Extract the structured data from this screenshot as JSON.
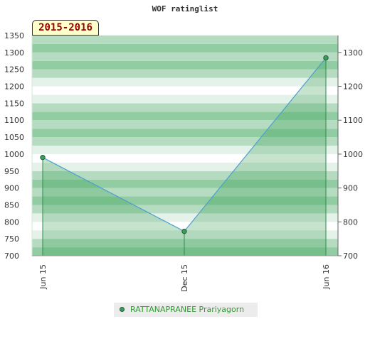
{
  "title": "WOF ratinglist",
  "season": "2015-2016",
  "legend": {
    "label": "RATTANAPRANEE Prariyagorn"
  },
  "colors": {
    "stripe_light": "#e5f2e9",
    "stripe_mid": "#b5dcc1",
    "stripe_dark": "#92cca3",
    "area_fill": "#2e9a4a",
    "line": "#4c9fd0",
    "marker": "#3a9e5e",
    "drop_line": "#2f8a4b",
    "legend_text": "#339933"
  },
  "chart_data": {
    "type": "area",
    "title": "WOF ratinglist",
    "x": [
      "Jun 15",
      "Dec 15",
      "Jun 16"
    ],
    "series": [
      {
        "name": "RATTANAPRANEE Prariyagorn",
        "values": [
          990,
          772,
          1284
        ]
      }
    ],
    "ylim": [
      700,
      1350
    ],
    "left_ticks": [
      700,
      750,
      800,
      850,
      900,
      950,
      1000,
      1050,
      1100,
      1150,
      1200,
      1250,
      1300,
      1350
    ],
    "right_ticks": [
      700,
      800,
      900,
      1000,
      1100,
      1200,
      1300
    ],
    "grid": true,
    "legend_position": "bottom"
  }
}
